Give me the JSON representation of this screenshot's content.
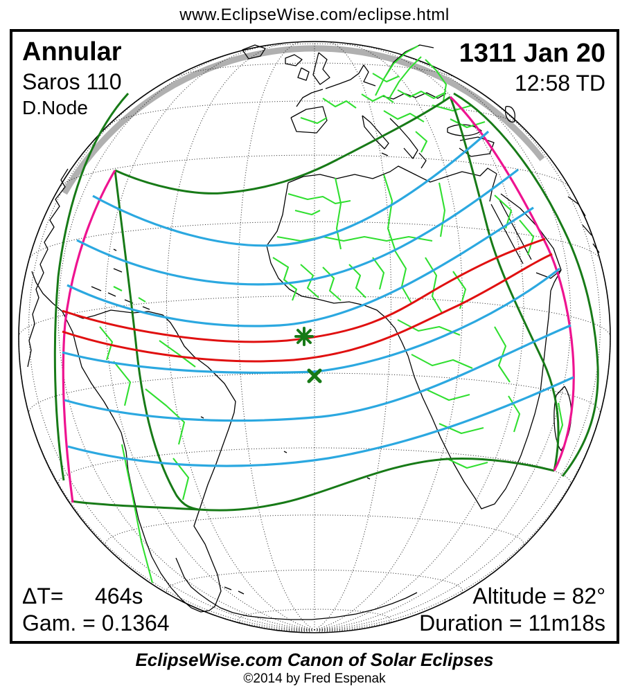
{
  "header": {
    "url": "www.EclipseWise.com/eclipse.html"
  },
  "eclipse": {
    "type": "Annular",
    "saros": "Saros 110",
    "node": "D.Node",
    "date": "1311 Jan 20",
    "time": "12:58 TD",
    "delta_t": {
      "label": "ΔT=",
      "value": "464s"
    },
    "gamma": {
      "label": "Gam. =",
      "value": "0.1364"
    },
    "altitude": {
      "label": "Altitude =",
      "value": "82°"
    },
    "duration": {
      "label": "Duration =",
      "value": "11m18s"
    }
  },
  "map": {
    "markers": {
      "greatest_eclipse": {
        "symbol": "✳",
        "meaning": "greatest eclipse point"
      },
      "x_mark": {
        "symbol": "✕",
        "meaning": "x point marker"
      }
    },
    "colors": {
      "globe_outline": "#000000",
      "graticule": "#1a1a1a",
      "coastline": "#000000",
      "country_border": "#30df30",
      "penumbral_limit": "#177a17",
      "sunrise_sunset": "#ee1390",
      "magnitude_line": "#2ba8e0",
      "central_path": "#e01010",
      "night_shade": "#b0b0b0",
      "marker_green": "#177a17"
    }
  },
  "footer": {
    "title": "EclipseWise.com Canon of Solar Eclipses",
    "copyright": "©2014 by Fred Espenak"
  }
}
